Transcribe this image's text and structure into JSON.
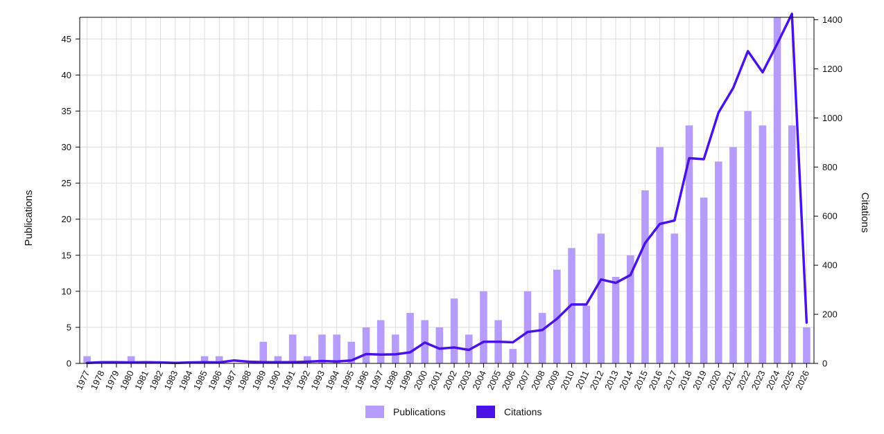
{
  "chart_data": {
    "type": "bar",
    "title": "",
    "categories": [
      "1977",
      "1978",
      "1979",
      "1980",
      "1981",
      "1982",
      "1983",
      "1984",
      "1985",
      "1986",
      "1987",
      "1988",
      "1989",
      "1990",
      "1991",
      "1992",
      "1993",
      "1994",
      "1995",
      "1996",
      "1997",
      "1998",
      "1999",
      "2000",
      "2001",
      "2002",
      "2003",
      "2004",
      "2005",
      "2006",
      "2007",
      "2008",
      "2009",
      "2010",
      "2011",
      "2012",
      "2013",
      "2014",
      "2015",
      "2016",
      "2017",
      "2018",
      "2019",
      "2020",
      "2021",
      "2022",
      "2023",
      "2024",
      "2025",
      "2026"
    ],
    "series": [
      {
        "name": "Publications",
        "type": "bar",
        "axis": "left",
        "color": "#b79cff",
        "values": [
          1,
          0,
          0,
          1,
          0,
          0,
          0,
          0,
          1,
          1,
          0,
          0,
          3,
          1,
          4,
          1,
          4,
          4,
          3,
          5,
          6,
          4,
          7,
          6,
          5,
          9,
          4,
          10,
          6,
          2,
          10,
          7,
          13,
          16,
          8,
          18,
          12,
          15,
          24,
          30,
          18,
          33,
          23,
          28,
          30,
          35,
          33,
          48,
          33,
          5
        ]
      },
      {
        "name": "Citations",
        "type": "line",
        "axis": "right",
        "color": "#4a12e8",
        "values": [
          2,
          5,
          5,
          4,
          5,
          4,
          2,
          4,
          5,
          4,
          12,
          7,
          5,
          5,
          5,
          7,
          10,
          8,
          12,
          38,
          36,
          37,
          45,
          85,
          60,
          65,
          55,
          88,
          88,
          86,
          128,
          136,
          182,
          240,
          240,
          342,
          328,
          360,
          490,
          568,
          582,
          836,
          832,
          1022,
          1122,
          1272,
          1186,
          1302,
          1424,
          166
        ]
      }
    ],
    "y_left": {
      "label": "Publications",
      "min": 0,
      "max": 48,
      "ticks": [
        0,
        5,
        10,
        15,
        20,
        25,
        30,
        35,
        40,
        45
      ]
    },
    "y_right": {
      "label": "Citations",
      "min": 0,
      "max": 1410,
      "ticks": [
        0,
        200,
        400,
        600,
        800,
        1000,
        1200,
        1400
      ]
    },
    "xlabel": "",
    "grid": true,
    "legend": {
      "placement": "bottom-center",
      "entries": [
        "Publications",
        "Citations"
      ]
    }
  }
}
